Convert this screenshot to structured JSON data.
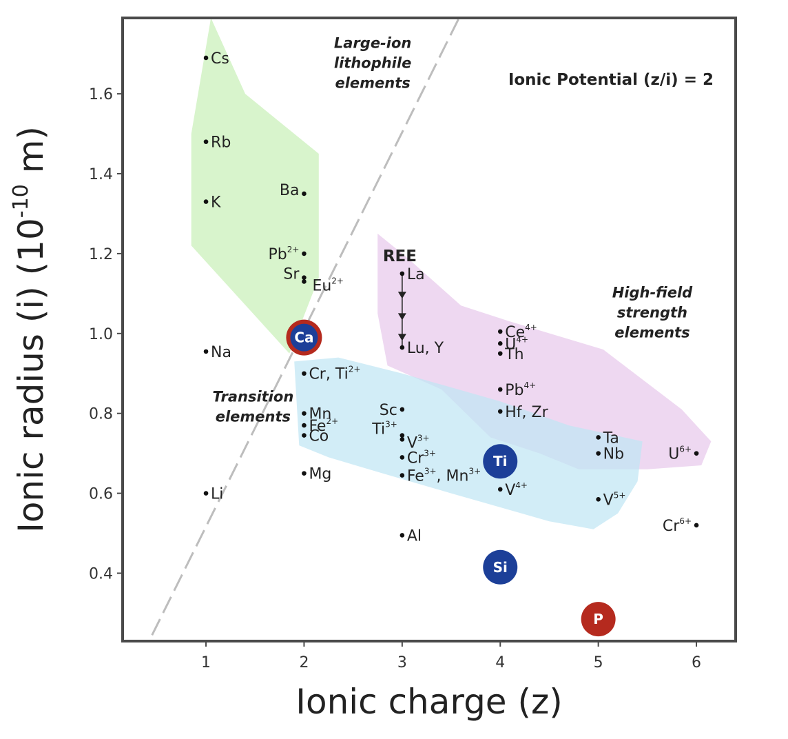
{
  "chart_data": {
    "type": "scatter",
    "xlabel": "Ionic charge (z)",
    "ylabel_main": "Ionic radius (i) (10",
    "ylabel_exp": "-10",
    "ylabel_end": " m)",
    "xlim": [
      0.15,
      6.4
    ],
    "ylim": [
      0.23,
      1.79
    ],
    "xticks": [
      "1",
      "2",
      "3",
      "4",
      "5",
      "6"
    ],
    "yticks": [
      "0.4",
      "0.6",
      "0.8",
      "1.0",
      "1.2",
      "1.4",
      "1.6"
    ],
    "points": [
      {
        "name": "Cs",
        "x": 1,
        "y": 1.69
      },
      {
        "name": "Rb",
        "x": 1,
        "y": 1.48
      },
      {
        "name": "K",
        "x": 1,
        "y": 1.33
      },
      {
        "name": "Na",
        "x": 1,
        "y": 0.955
      },
      {
        "name": "Li",
        "x": 1,
        "y": 0.6
      },
      {
        "name": "Ba",
        "x": 2,
        "y": 1.35
      },
      {
        "name": "Pb",
        "sup": "2+",
        "x": 2,
        "y": 1.2
      },
      {
        "name": "Sr",
        "x": 2,
        "y": 1.14
      },
      {
        "name": "Eu",
        "sup": "2+",
        "x": 2,
        "y": 1.13
      },
      {
        "name": "Cr, Ti",
        "sup": "2+",
        "x": 2,
        "y": 0.9
      },
      {
        "name": "Mn",
        "x": 2,
        "y": 0.8
      },
      {
        "name": "Fe",
        "sup": "2+",
        "x": 2,
        "y": 0.77
      },
      {
        "name": "Co",
        "x": 2,
        "y": 0.745
      },
      {
        "name": "Mg",
        "x": 2,
        "y": 0.65
      },
      {
        "name": "La",
        "x": 3,
        "y": 1.15
      },
      {
        "name": "Lu, Y",
        "x": 3,
        "y": 0.965
      },
      {
        "name": "Sc",
        "x": 3,
        "y": 0.81
      },
      {
        "name": "Ti",
        "sup": "3+",
        "x": 3,
        "y": 0.745
      },
      {
        "name": "V",
        "sup": "3+",
        "x": 3,
        "y": 0.735
      },
      {
        "name": "Cr",
        "sup": "3+",
        "x": 3,
        "y": 0.69
      },
      {
        "name": "Fe",
        "sup": "3+",
        "tail": ", Mn",
        "tailsup": "3+",
        "x": 3,
        "y": 0.645
      },
      {
        "name": "Al",
        "x": 3,
        "y": 0.495
      },
      {
        "name": "Ce",
        "sup": "4+",
        "x": 4,
        "y": 1.005
      },
      {
        "name": "U",
        "sup": "4+",
        "x": 4,
        "y": 0.975
      },
      {
        "name": "Th",
        "x": 4,
        "y": 0.95
      },
      {
        "name": "Pb",
        "sup": "4+",
        "x": 4,
        "y": 0.86
      },
      {
        "name": "Hf, Zr",
        "x": 4,
        "y": 0.805
      },
      {
        "name": "V",
        "sup": "4+",
        "x": 4,
        "y": 0.61
      },
      {
        "name": "Ta",
        "x": 5,
        "y": 0.74
      },
      {
        "name": "Nb",
        "x": 5,
        "y": 0.7
      },
      {
        "name": "V",
        "sup": "5+",
        "x": 5,
        "y": 0.585
      },
      {
        "name": "U",
        "sup": "6+",
        "x": 6,
        "y": 0.7
      },
      {
        "name": "Cr",
        "sup": "6+",
        "x": 6,
        "y": 0.52
      }
    ],
    "highlighted": [
      {
        "name": "Ca",
        "x": 2,
        "y": 0.99,
        "color": "#1c3f98",
        "ring": "#b52a1e"
      },
      {
        "name": "Ti",
        "x": 4,
        "y": 0.68,
        "color": "#1c3f98"
      },
      {
        "name": "Si",
        "x": 4,
        "y": 0.415,
        "color": "#1c3f98"
      },
      {
        "name": "P",
        "x": 5,
        "y": 0.285,
        "color": "#b52a1e"
      }
    ],
    "regions": [
      {
        "name": "large-ion-lithophile",
        "color": "#c9f0b8",
        "polygon": [
          [
            1.05,
            1.79
          ],
          [
            1.4,
            1.6
          ],
          [
            2.15,
            1.45
          ],
          [
            2.15,
            1.14
          ],
          [
            1.85,
            0.95
          ],
          [
            0.85,
            1.22
          ],
          [
            0.85,
            1.5
          ]
        ]
      },
      {
        "name": "high-field-strength",
        "color": "#e8c9ec",
        "polygon": [
          [
            2.75,
            1.25
          ],
          [
            3.05,
            1.19
          ],
          [
            3.6,
            1.07
          ],
          [
            4.1,
            1.03
          ],
          [
            5.05,
            0.96
          ],
          [
            5.85,
            0.81
          ],
          [
            6.15,
            0.73
          ],
          [
            6.05,
            0.67
          ],
          [
            5.5,
            0.66
          ],
          [
            4.8,
            0.66
          ],
          [
            4.4,
            0.7
          ],
          [
            3.9,
            0.74
          ],
          [
            3.4,
            0.86
          ],
          [
            2.85,
            0.92
          ],
          [
            2.75,
            1.05
          ]
        ]
      },
      {
        "name": "transition",
        "color": "#c0e6f4",
        "polygon": [
          [
            1.9,
            0.93
          ],
          [
            2.35,
            0.94
          ],
          [
            3.0,
            0.9
          ],
          [
            4.0,
            0.83
          ],
          [
            4.7,
            0.77
          ],
          [
            5.45,
            0.73
          ],
          [
            5.4,
            0.63
          ],
          [
            5.2,
            0.55
          ],
          [
            4.95,
            0.51
          ],
          [
            4.5,
            0.53
          ],
          [
            3.5,
            0.6
          ],
          [
            2.8,
            0.65
          ],
          [
            2.25,
            0.69
          ],
          [
            1.95,
            0.72
          ]
        ]
      }
    ],
    "group_labels": [
      {
        "lines": [
          "Large-ion",
          "lithophile",
          "elements"
        ],
        "x": 2.7,
        "y": 1.715
      },
      {
        "lines": [
          "High-field",
          "strength",
          "elements"
        ],
        "x": 5.55,
        "y": 1.09
      },
      {
        "lines": [
          "Transition",
          "elements"
        ],
        "x": 1.48,
        "y": 0.83
      }
    ],
    "annotation": "Ionic Potential (z/i) = 2",
    "ree_label": "REE",
    "ree_arrow": {
      "x": 3,
      "y_from": 1.15,
      "y_to": 0.965
    },
    "ionic_potential_line": {
      "x_from": 0.32,
      "y_from": 1.79,
      "x_to": 0.92,
      "y_to": 0.26
    }
  }
}
